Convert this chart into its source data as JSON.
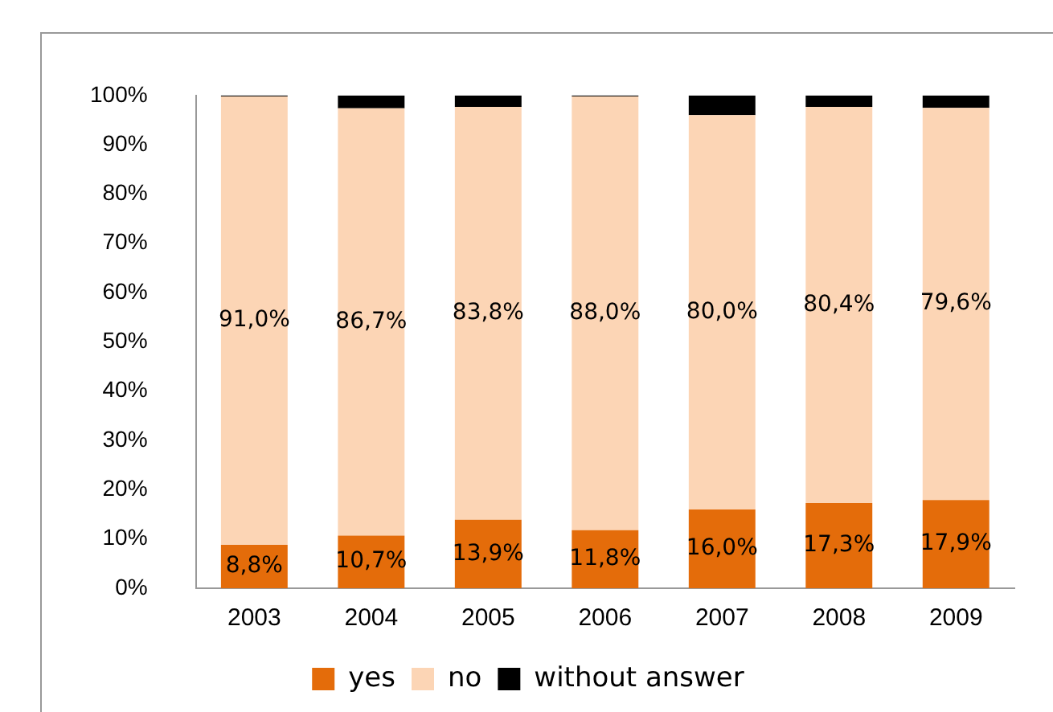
{
  "chart_data": {
    "type": "bar",
    "stacked": true,
    "categories": [
      "2003",
      "2004",
      "2005",
      "2006",
      "2007",
      "2008",
      "2009"
    ],
    "series": [
      {
        "name": "yes",
        "color": "#e46c0a",
        "values": [
          8.8,
          10.7,
          13.9,
          11.8,
          16.0,
          17.3,
          17.9
        ],
        "value_labels": [
          "8,8%",
          "10,7%",
          "13,9%",
          "11,8%",
          "16,0%",
          "17,3%",
          "17,9%"
        ]
      },
      {
        "name": "no",
        "color": "#fcd5b5",
        "values": [
          91.0,
          86.7,
          83.8,
          88.0,
          80.0,
          80.4,
          79.6
        ],
        "value_labels": [
          "91,0%",
          "86,7%",
          "83,8%",
          "88,0%",
          "80,0%",
          "80,4%",
          "79,6%"
        ]
      },
      {
        "name": "without answer",
        "color": "#000000",
        "values": [
          0.2,
          2.6,
          2.3,
          0.2,
          4.0,
          2.3,
          2.5
        ]
      }
    ],
    "ylim": [
      0,
      100
    ],
    "yticks": [
      {
        "value": 0,
        "label": "0%"
      },
      {
        "value": 10,
        "label": "10%"
      },
      {
        "value": 20,
        "label": "20%"
      },
      {
        "value": 30,
        "label": "30%"
      },
      {
        "value": 40,
        "label": "40%"
      },
      {
        "value": 50,
        "label": "50%"
      },
      {
        "value": 60,
        "label": "60%"
      },
      {
        "value": 70,
        "label": "70%"
      },
      {
        "value": 80,
        "label": "80%"
      },
      {
        "value": 90,
        "label": "90%"
      },
      {
        "value": 100,
        "label": "100%"
      }
    ],
    "grid": false,
    "legend": "bottom"
  }
}
